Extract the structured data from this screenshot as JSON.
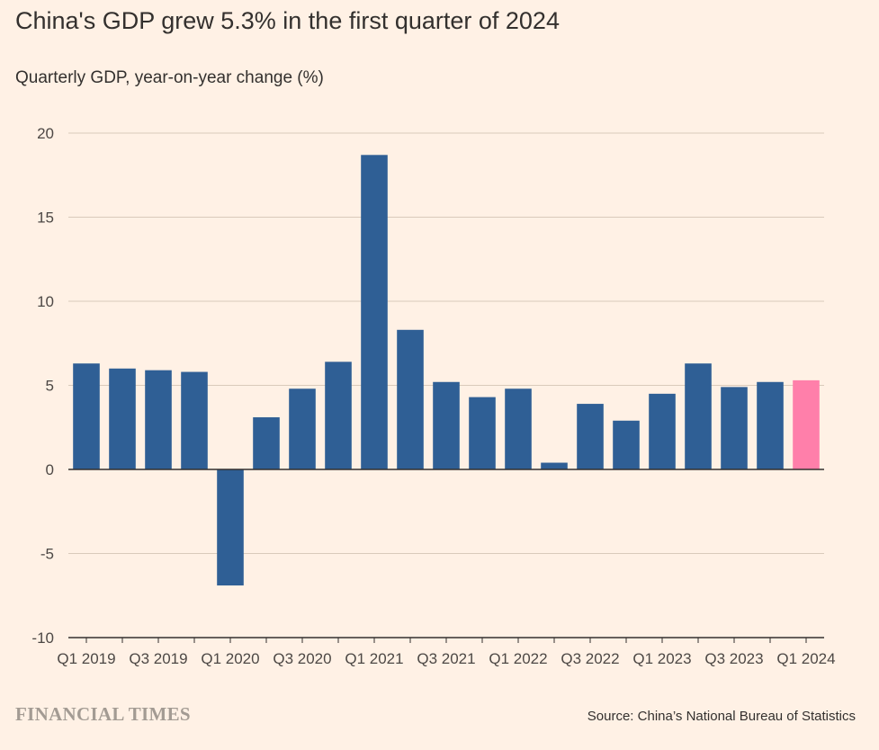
{
  "title": "China's GDP grew 5.3% in the first quarter of 2024",
  "subtitle": "Quarterly GDP, year-on-year change (%)",
  "logo": "FINANCIAL TIMES",
  "source": "Source: China’s National Bureau of Statistics",
  "colors": {
    "background": "#fff1e5",
    "bar": "#2f5f95",
    "highlight": "#ff7faa",
    "grid": "#d9cabb",
    "zero_line": "#33302e"
  },
  "chart_data": {
    "type": "bar",
    "categories": [
      "Q1 2019",
      "Q2 2019",
      "Q3 2019",
      "Q4 2019",
      "Q1 2020",
      "Q2 2020",
      "Q3 2020",
      "Q4 2020",
      "Q1 2021",
      "Q2 2021",
      "Q3 2021",
      "Q4 2021",
      "Q1 2022",
      "Q2 2022",
      "Q3 2022",
      "Q4 2022",
      "Q1 2023",
      "Q2 2023",
      "Q3 2023",
      "Q4 2023",
      "Q1 2024"
    ],
    "values": [
      6.3,
      6.0,
      5.9,
      5.8,
      -6.9,
      3.1,
      4.8,
      6.4,
      18.7,
      8.3,
      5.2,
      4.3,
      4.8,
      0.4,
      3.9,
      2.9,
      4.5,
      6.3,
      4.9,
      5.2,
      5.3
    ],
    "highlight_index": 20,
    "x_tick_labels": [
      "Q1 2019",
      "Q3 2019",
      "Q1 2020",
      "Q3 2020",
      "Q1 2021",
      "Q3 2021",
      "Q1 2022",
      "Q3 2022",
      "Q1 2023",
      "Q3 2023",
      "Q1 2024"
    ],
    "y_ticks": [
      -10,
      -5,
      0,
      5,
      10,
      15,
      20
    ],
    "ylim": [
      -10,
      20
    ],
    "grid": true,
    "title": "China's GDP grew 5.3% in the first quarter of 2024",
    "ylabel": "Quarterly GDP, year-on-year change (%)",
    "xlabel": ""
  }
}
